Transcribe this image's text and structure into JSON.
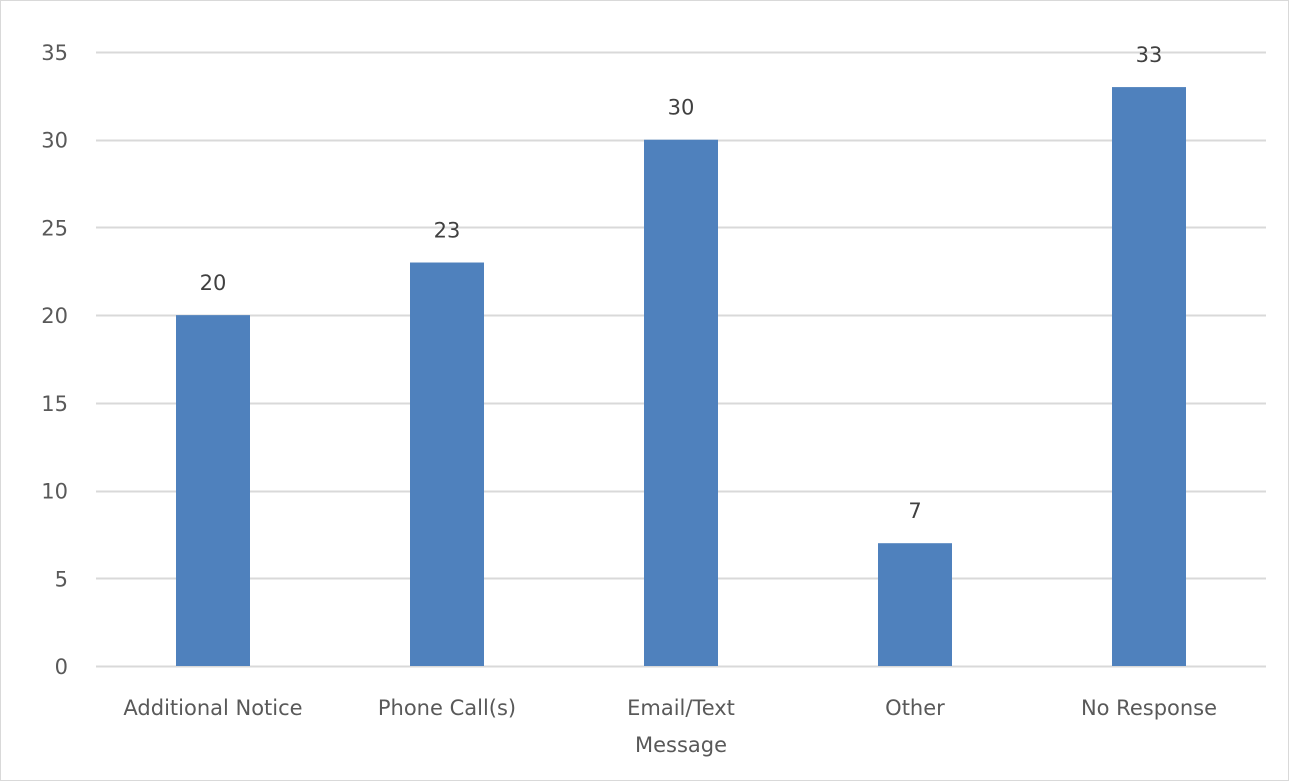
{
  "chart_data": {
    "type": "bar",
    "title": "",
    "xlabel": "",
    "ylabel": "",
    "categories": [
      "Additional Notice",
      "Phone Call(s)",
      "Email/Text Message",
      "Other",
      "No Response"
    ],
    "category_lines": [
      [
        "Additional Notice"
      ],
      [
        "Phone Call(s)"
      ],
      [
        "Email/Text",
        "Message"
      ],
      [
        "Other"
      ],
      [
        "No Response"
      ]
    ],
    "values": [
      20,
      23,
      30,
      7,
      33
    ],
    "data_labels": [
      "20",
      "23",
      "30",
      "7",
      "33"
    ],
    "ylim": [
      0,
      35
    ],
    "y_ticks": [
      0,
      5,
      10,
      15,
      20,
      25,
      30,
      35
    ],
    "grid": true,
    "legend": "none",
    "colors": {
      "bar": "#4f81bd",
      "grid": "#d9d9d9",
      "axis_text": "#595959",
      "data_label": "#404040"
    }
  }
}
